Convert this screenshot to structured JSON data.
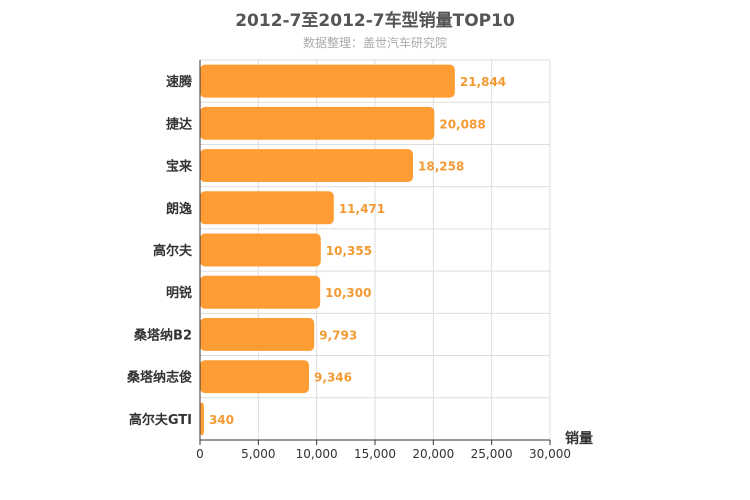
{
  "chart_data": {
    "type": "bar",
    "orientation": "horizontal",
    "title": "2012-7至2012-7车型销量TOP10",
    "subtitle": "数据整理：盖世汽车研究院",
    "xlabel": "销量",
    "ylabel": "",
    "xlim": [
      0,
      30000
    ],
    "xticks": [
      0,
      5000,
      10000,
      15000,
      20000,
      25000,
      30000
    ],
    "xtick_labels": [
      "0",
      "5,000",
      "10,000",
      "15,000",
      "20,000",
      "25,000",
      "30,000"
    ],
    "grid": true,
    "bar_color": "#ff9c33",
    "label_color": "#f39a34",
    "categories": [
      "速腾",
      "捷达",
      "宝来",
      "朗逸",
      "高尔夫",
      "明锐",
      "桑塔纳B2",
      "桑塔纳志俊",
      "高尔夫GTI"
    ],
    "values": [
      21844,
      20088,
      18258,
      11471,
      10355,
      10300,
      9793,
      9346,
      340
    ],
    "value_labels": [
      "21,844",
      "20,088",
      "18,258",
      "11,471",
      "10,355",
      "10,300",
      "9,793",
      "9,346",
      "340"
    ]
  }
}
